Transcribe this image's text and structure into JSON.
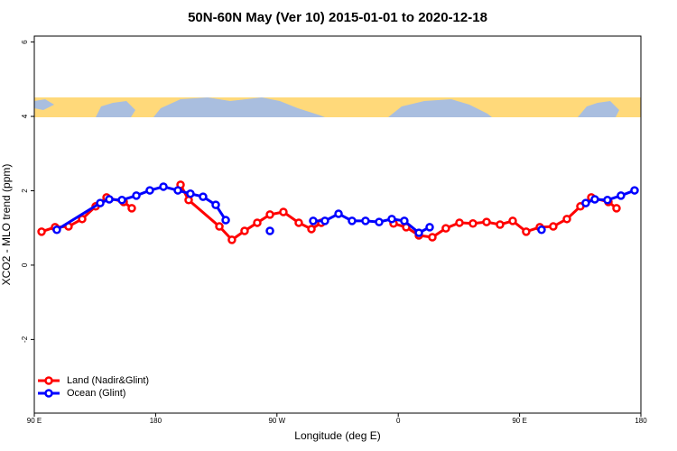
{
  "chart_data": {
    "type": "line",
    "title": "50N-60N May (Ver 10)   2015-01-01 to 2020-12-18",
    "x_label": "Longitude (deg E)",
    "y_label": "XCO2 - MLO trend (ppm)",
    "xlim": [
      90,
      540
    ],
    "xticks": [
      {
        "value": 90,
        "label": "90 E"
      },
      180,
      {
        "value": 270,
        "label": "90 W"
      },
      {
        "value": 360,
        "label": "0"
      },
      {
        "value": 450,
        "label": "90 E"
      },
      {
        "value": 540,
        "label": "180"
      }
    ],
    "ylim": [
      -3.98,
      6.16
    ],
    "yticks": [
      -2,
      0,
      2,
      4,
      6
    ],
    "legend": "bottomleft",
    "series": [
      {
        "name": "Land (Nadir&Glint)",
        "color": "#ff0000",
        "x": [
          95.4,
          105.4,
          115.4,
          125.5,
          135.5,
          143.6,
          156.3,
          162.3,
          null,
          198.5,
          204.5,
          227.3,
          236.6,
          246.0,
          255.4,
          264.8,
          274.8,
          286.2,
          295.6,
          302.9,
          null,
          356.5,
          365.9,
          375.3,
          385.3,
          395.3,
          405.4,
          415.4,
          425.5,
          435.5,
          444.9,
          454.9,
          465.0,
          475.0,
          485.1,
          495.1,
          503.2,
          515.9,
          521.9
        ],
        "values": [
          0.9,
          1.02,
          1.04,
          1.24,
          1.58,
          1.82,
          1.7,
          1.53,
          null,
          2.16,
          1.75,
          1.04,
          0.68,
          0.92,
          1.14,
          1.36,
          1.43,
          1.14,
          0.97,
          1.14,
          null,
          1.12,
          1.02,
          0.8,
          0.75,
          0.99,
          1.14,
          1.12,
          1.16,
          1.09,
          1.19,
          0.9,
          1.02,
          1.04,
          1.24,
          1.58,
          1.82,
          1.7,
          1.53
        ]
      },
      {
        "name": "Ocean (Glint)",
        "color": "#0000ff",
        "x": [
          106.7,
          138.9,
          145.6,
          155.0,
          165.7,
          175.7,
          185.8,
          196.5,
          205.8,
          215.2,
          224.6,
          232.0,
          null,
          264.8,
          null,
          296.9,
          305.6,
          315.7,
          325.7,
          335.7,
          345.8,
          355.2,
          364.5,
          375.3,
          383.3,
          null,
          466.3,
          null,
          499.1,
          505.8,
          515.2,
          525.2,
          535.3
        ],
        "values": [
          0.95,
          1.67,
          1.77,
          1.75,
          1.87,
          2.01,
          2.11,
          2.01,
          1.92,
          1.84,
          1.62,
          1.21,
          null,
          0.92,
          null,
          1.19,
          1.19,
          1.38,
          1.19,
          1.19,
          1.16,
          1.24,
          1.19,
          0.87,
          1.02,
          null,
          0.95,
          null,
          1.67,
          1.77,
          1.75,
          1.87,
          2.01
        ]
      }
    ]
  }
}
